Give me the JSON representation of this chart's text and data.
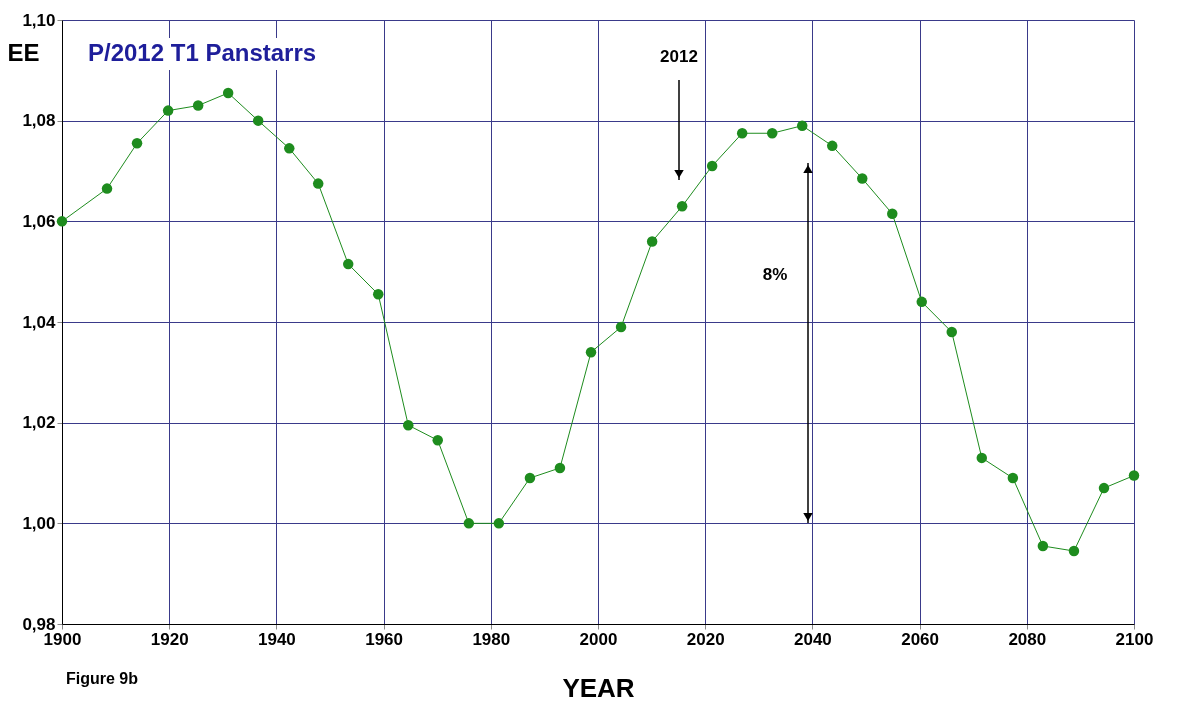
{
  "chart_data": {
    "type": "line",
    "title": "P/2012 T1 Panstarrs",
    "xlabel": "YEAR",
    "ylabel": "EE",
    "x": [
      1900,
      1908.4,
      1914.0,
      1919.8,
      1925.4,
      1931.0,
      1936.6,
      1942.4,
      1947.8,
      1953.4,
      1959.0,
      1964.6,
      1970.1,
      1975.9,
      1981.5,
      1987.3,
      1992.9,
      1998.7,
      2004.3,
      2010.1,
      2015.7,
      2021.3,
      2026.9,
      2032.5,
      2038.1,
      2043.7,
      2049.3,
      2054.9,
      2060.4,
      2066.0,
      2071.6,
      2077.4,
      2083.0,
      2088.8,
      2094.4,
      2100
    ],
    "series": [
      {
        "color": "#1e8c1e",
        "values": [
          1.06,
          1.0665,
          1.0755,
          1.082,
          1.083,
          1.0855,
          1.08,
          1.0745,
          1.0675,
          1.0515,
          1.0455,
          1.0195,
          1.0165,
          1.0,
          1.0,
          1.009,
          1.011,
          1.034,
          1.039,
          1.056,
          1.063,
          1.071,
          1.0775,
          1.0775,
          1.079,
          1.075,
          1.0685,
          1.0615,
          1.044,
          1.038,
          1.013,
          1.009,
          0.9955,
          0.9945,
          1.007,
          1.0095
        ]
      }
    ],
    "xlim": [
      1900,
      2100
    ],
    "xticks": [
      1900,
      1920,
      1940,
      1960,
      1980,
      2000,
      2020,
      2040,
      2060,
      2080,
      2100
    ],
    "ylim": [
      0.98,
      1.1
    ],
    "yticks": [
      {
        "value": 0.98,
        "label": "0,98"
      },
      {
        "value": 1.0,
        "label": "1,00"
      },
      {
        "value": 1.02,
        "label": "1,02"
      },
      {
        "value": 1.04,
        "label": "1,04"
      },
      {
        "value": 1.06,
        "label": "1,06"
      },
      {
        "value": 1.08,
        "label": "1,08"
      },
      {
        "value": 1.1,
        "label": "1,10"
      }
    ],
    "annotations": [
      "2012",
      "8%",
      "Figure 9b"
    ],
    "grid": true,
    "marker": "circle",
    "line_style": "solid"
  }
}
